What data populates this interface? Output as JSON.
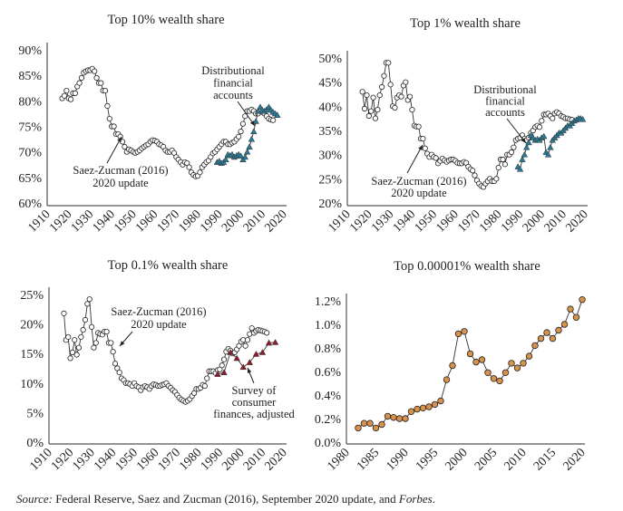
{
  "colors": {
    "line": "#333333",
    "hollow_marker": "#ffffff",
    "dfa_blue": "#2b7894",
    "scf_red": "#8e1c2c",
    "forbes_orange": "#d8924c"
  },
  "chart_data": [
    {
      "type": "line",
      "title": "Top 10% wealth share",
      "xlabel": "",
      "ylabel": "",
      "xlim": [
        1910,
        2020
      ],
      "ylim": [
        60,
        90
      ],
      "xticks": [
        1910,
        1920,
        1930,
        1940,
        1950,
        1960,
        1970,
        1980,
        1990,
        2000,
        2010,
        2020
      ],
      "xtick_labels": [
        "1910",
        "1920",
        "1930",
        "1940",
        "1950",
        "1960",
        "1970",
        "1980",
        "1990",
        "2000",
        "2010",
        "2020"
      ],
      "yticks": [
        60,
        65,
        70,
        75,
        80,
        85,
        90
      ],
      "ytick_labels": [
        "60%",
        "65%",
        "70%",
        "75%",
        "80%",
        "85%",
        "90%"
      ],
      "series": [
        {
          "name": "Saez-Zucman (2016) 2020 update",
          "marker": "circle",
          "x_start": 1917,
          "values": [
            80.5,
            81,
            82,
            80.5,
            80.3,
            81.5,
            81.5,
            82.8,
            83.5,
            84.5,
            85.5,
            85.8,
            86,
            86,
            86.3,
            85.8,
            84.5,
            83.5,
            83.5,
            82,
            82,
            79,
            76.5,
            75,
            75,
            73.5,
            73.5,
            73,
            72,
            71,
            70,
            70.5,
            70.3,
            70,
            69.8,
            70,
            70.3,
            70.7,
            71,
            71.3,
            71.5,
            72,
            72.3,
            72.2,
            72,
            71.5,
            71.3,
            71,
            70.3,
            70,
            70,
            70.3,
            69.8,
            69,
            68.5,
            68,
            67.5,
            68,
            67.8,
            67,
            66,
            65.5,
            65.2,
            65.3,
            66,
            67,
            67.5,
            68,
            68.3,
            69,
            69.7,
            70,
            70.5,
            71,
            71.5,
            72,
            72,
            71.5,
            71.5,
            71.8,
            72,
            72.5,
            73,
            74,
            75.5,
            77,
            78,
            78,
            78.3,
            78,
            77.5,
            77.5,
            78,
            77.8,
            77.5,
            77,
            76.5,
            76.3,
            76.2
          ]
        },
        {
          "name": "Distributional financial accounts",
          "marker": "triangle-blue",
          "x_start": 1989,
          "values": [
            68,
            68.2,
            67.8,
            68,
            68.5,
            69.5,
            69.3,
            69.5,
            69,
            69.3,
            69.5,
            69.2,
            68.5,
            69,
            70,
            71,
            72.5,
            74,
            76,
            78,
            78.8,
            78.2,
            78,
            78.3,
            78.8,
            78.2,
            77.8,
            77.5,
            77.2
          ]
        }
      ],
      "annotations": [
        {
          "lines": [
            "Distributional",
            "financial",
            "accounts"
          ]
        },
        {
          "lines": [
            "Saez-Zucman (2016)",
            "2020 update"
          ]
        }
      ]
    },
    {
      "type": "line",
      "title": "Top 1% wealth share",
      "xlabel": "",
      "ylabel": "",
      "xlim": [
        1910,
        2020
      ],
      "ylim": [
        20,
        50
      ],
      "xticks": [
        1910,
        1920,
        1930,
        1940,
        1950,
        1960,
        1970,
        1980,
        1990,
        2000,
        2010,
        2020
      ],
      "xtick_labels": [
        "1910",
        "1920",
        "1930",
        "1940",
        "1950",
        "1960",
        "1970",
        "1980",
        "1990",
        "2000",
        "2010",
        "2020"
      ],
      "yticks": [
        20,
        25,
        30,
        35,
        40,
        45,
        50
      ],
      "ytick_labels": [
        "20%",
        "25%",
        "30%",
        "35%",
        "40%",
        "45%",
        "50%"
      ],
      "series": [
        {
          "name": "Saez-Zucman (2016) 2020 update",
          "marker": "circle",
          "x_start": 1917,
          "values": [
            43,
            39.5,
            42.3,
            38,
            39,
            41.8,
            37.5,
            39.3,
            42.3,
            44,
            46.3,
            49,
            49,
            44.5,
            40,
            39.7,
            41.8,
            42.3,
            42,
            44.3,
            45,
            41.3,
            42,
            39.3,
            36,
            35.8,
            35.8,
            33.3,
            33.3,
            31.3,
            30.2,
            29.5,
            30,
            29.5,
            29.3,
            28.2,
            28.7,
            29.2,
            28.8,
            28.5,
            28.8,
            29,
            29,
            28.7,
            28.3,
            28.2,
            28.2,
            28.5,
            28.3,
            27.5,
            27,
            26.7,
            25.7,
            24.7,
            24,
            23.5,
            23.3,
            24,
            24.5,
            25,
            24.5,
            24.5,
            25,
            27.3,
            29,
            29,
            28,
            30,
            30,
            30.5,
            31.5,
            33,
            33.3,
            33.5,
            34,
            33.3,
            33,
            33.5,
            34.5,
            35,
            35.7,
            36,
            35.7,
            37,
            38.3,
            38.3,
            38.5,
            38,
            37.5,
            38.5,
            38.8,
            38.5,
            38,
            37.8,
            37.5,
            37.5,
            37.3,
            37.2
          ]
        },
        {
          "name": "Distributional financial accounts",
          "marker": "triangle-blue",
          "x_start": 1989,
          "values": [
            27.5,
            27,
            29,
            30,
            31.5,
            32.5,
            34,
            33.5,
            33,
            33.2,
            33,
            33.5,
            33.8,
            30.5,
            30,
            31.5,
            33,
            33.5,
            34,
            34.5,
            34.5,
            35,
            35.5,
            36,
            36,
            36.5,
            37,
            37.2,
            37.5,
            37.5,
            37.3
          ]
        }
      ],
      "annotations": [
        {
          "lines": [
            "Distributional",
            "financial",
            "accounts"
          ]
        },
        {
          "lines": [
            "Saez-Zucman (2016)",
            "2020 update"
          ]
        }
      ]
    },
    {
      "type": "line",
      "title": "Top 0.1% wealth share",
      "xlabel": "",
      "ylabel": "",
      "xlim": [
        1910,
        2020
      ],
      "ylim": [
        0,
        25
      ],
      "xticks": [
        1910,
        1920,
        1930,
        1940,
        1950,
        1960,
        1970,
        1980,
        1990,
        2000,
        2010,
        2020
      ],
      "xtick_labels": [
        "1910",
        "1920",
        "1930",
        "1940",
        "1950",
        "1960",
        "1970",
        "1980",
        "1990",
        "2000",
        "2010",
        "2020"
      ],
      "yticks": [
        0,
        5,
        10,
        15,
        20,
        25
      ],
      "ytick_labels": [
        "0%",
        "5%",
        "10%",
        "15%",
        "20%",
        "25%"
      ],
      "series": [
        {
          "name": "Saez-Zucman (2016) 2020 update",
          "marker": "circle",
          "x_start": 1917,
          "values": [
            21.8,
            17.3,
            17.8,
            14.2,
            15.2,
            17.3,
            14.8,
            16,
            17.8,
            19,
            20.7,
            23.4,
            24.2,
            19.5,
            16,
            16.8,
            18.5,
            18.3,
            18.2,
            18.7,
            18.7,
            16.8,
            16.8,
            15.3,
            13.3,
            12.5,
            11.8,
            10.8,
            10.5,
            10,
            10,
            9.8,
            9.5,
            10,
            9.5,
            9.3,
            8.8,
            9.3,
            9.5,
            9.3,
            9,
            9.5,
            9.8,
            9.7,
            9.5,
            9.5,
            9.7,
            9.8,
            10,
            9.5,
            9.2,
            8.8,
            8.5,
            8,
            7.5,
            7.2,
            7,
            6.8,
            7,
            7.3,
            7.8,
            8.3,
            9,
            9,
            9.2,
            9.7,
            9.5,
            10.8,
            12,
            12,
            12,
            11.7,
            12.2,
            12.3,
            13,
            14,
            15.3,
            15.8,
            15.5,
            15,
            15.2,
            15.7,
            16.3,
            17,
            17.3,
            16.3,
            17.3,
            18.3,
            19.3,
            18.5,
            18.8,
            19,
            18.9,
            18.8,
            18.7,
            18.5
          ]
        },
        {
          "name": "Survey of consumer finances, adjusted",
          "marker": "triangle-red",
          "x": [
            1989,
            1992,
            1995,
            1998,
            2001,
            2004,
            2007,
            2010,
            2013,
            2016
          ],
          "values": [
            11.5,
            11.8,
            15.2,
            14.2,
            12.7,
            13.5,
            14.9,
            15.2,
            16.8,
            16.9
          ]
        }
      ],
      "annotations": [
        {
          "lines": [
            "Saez-Zucman (2016)",
            "2020 update"
          ]
        },
        {
          "lines": [
            "Survey of",
            "consumer",
            "finances, adjusted"
          ]
        }
      ]
    },
    {
      "type": "line",
      "title": "Top 0.00001% wealth share",
      "xlabel": "",
      "ylabel": "",
      "xlim": [
        1980,
        2020
      ],
      "ylim": [
        0,
        1.2
      ],
      "xticks": [
        1980,
        1985,
        1990,
        1995,
        2000,
        2005,
        2010,
        2015,
        2020
      ],
      "xtick_labels": [
        "1980",
        "1985",
        "1990",
        "1995",
        "2000",
        "2005",
        "2010",
        "2015",
        "2020"
      ],
      "yticks": [
        0,
        0.2,
        0.4,
        0.6,
        0.8,
        1.0,
        1.2
      ],
      "ytick_labels": [
        "0.0%",
        "0.2%",
        "0.4%",
        "0.6%",
        "0.8%",
        "1.0%",
        "1.2%"
      ],
      "series": [
        {
          "name": "Forbes",
          "marker": "circle-orange",
          "x_start": 1982,
          "values": [
            0.12,
            0.16,
            0.16,
            0.12,
            0.15,
            0.22,
            0.21,
            0.2,
            0.2,
            0.26,
            0.28,
            0.29,
            0.3,
            0.32,
            0.35,
            0.53,
            0.65,
            0.92,
            0.94,
            0.75,
            0.68,
            0.7,
            0.59,
            0.54,
            0.52,
            0.59,
            0.67,
            0.63,
            0.67,
            0.73,
            0.82,
            0.88,
            0.93,
            0.88,
            0.95,
            1.0,
            1.13,
            1.06,
            1.21
          ]
        }
      ],
      "annotations": []
    }
  ],
  "source": {
    "label": "Source:",
    "text": " Federal Reserve, Saez and Zucman (2016), September 2020 update, and ",
    "forbes": "Forbes",
    "end": "."
  }
}
